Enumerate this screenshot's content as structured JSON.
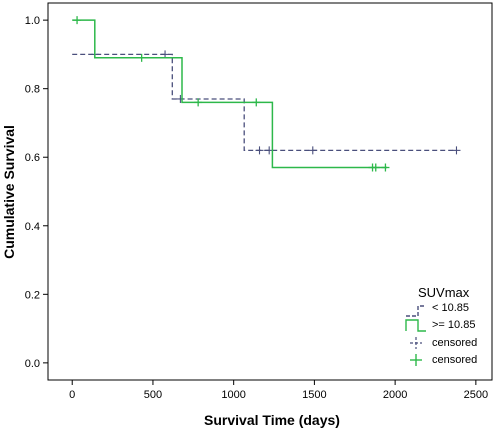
{
  "chart_data": {
    "type": "line",
    "title": "",
    "xlabel": "Survival Time (days)",
    "ylabel": "Cumulative Survival",
    "xlim": [
      -150,
      2600
    ],
    "ylim": [
      -0.05,
      1.05
    ],
    "xticks": [
      0,
      500,
      1000,
      1500,
      2000,
      2500
    ],
    "yticks": [
      0.0,
      0.2,
      0.4,
      0.6,
      0.8,
      1.0
    ],
    "xtick_labels": [
      "0",
      "500",
      "1000",
      "1500",
      "2000",
      "2500"
    ],
    "ytick_labels": [
      "0.0",
      "0.2",
      "0.4",
      "0.6",
      "0.8",
      "1.0"
    ],
    "grid": false,
    "legend": {
      "title": "SUVmax",
      "placement": "bottom-right",
      "entries": [
        "< 10.85",
        ">= 10.85",
        "censored",
        "censored"
      ]
    },
    "series": [
      {
        "name": "< 10.85",
        "style": "dashed-step",
        "color": "#4a4f7c",
        "steps": [
          [
            0,
            0.9
          ],
          [
            620,
            0.9
          ],
          [
            620,
            0.77
          ],
          [
            1065,
            0.77
          ],
          [
            1065,
            0.62
          ],
          [
            2380,
            0.62
          ]
        ],
        "censored": [
          [
            140,
            0.9
          ],
          [
            575,
            0.9
          ],
          [
            670,
            0.77
          ],
          [
            1160,
            0.62
          ],
          [
            1220,
            0.62
          ],
          [
            1490,
            0.62
          ],
          [
            2380,
            0.62
          ]
        ]
      },
      {
        "name": ">= 10.85",
        "style": "solid-step",
        "color": "#2db84a",
        "steps": [
          [
            0,
            1.0
          ],
          [
            140,
            1.0
          ],
          [
            140,
            0.89
          ],
          [
            680,
            0.89
          ],
          [
            680,
            0.76
          ],
          [
            1240,
            0.76
          ],
          [
            1240,
            0.57
          ],
          [
            1950,
            0.57
          ]
        ],
        "censored": [
          [
            30,
            1.0
          ],
          [
            430,
            0.89
          ],
          [
            780,
            0.76
          ],
          [
            1140,
            0.76
          ],
          [
            1860,
            0.57
          ],
          [
            1880,
            0.57
          ],
          [
            1940,
            0.57
          ]
        ]
      }
    ]
  }
}
